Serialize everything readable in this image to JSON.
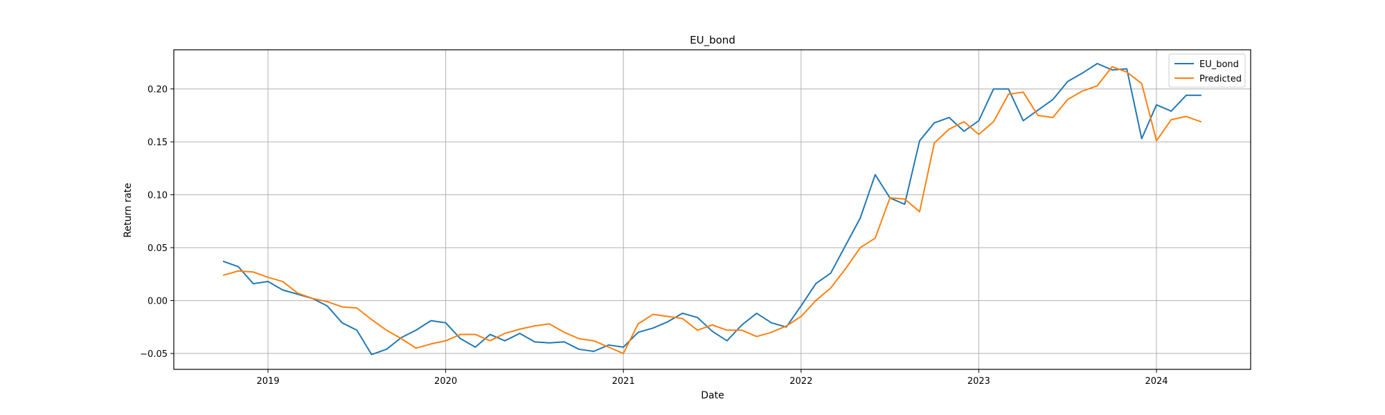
{
  "chart_data": {
    "type": "line",
    "title": "EU_bond",
    "xlabel": "Date",
    "ylabel": "Return rate",
    "grid": true,
    "legend_position": "top-right",
    "xlim": [
      2018.47,
      2024.53
    ],
    "ylim": [
      -0.065,
      0.237
    ],
    "x_ticks": [
      {
        "label": "2019",
        "value": 2019
      },
      {
        "label": "2020",
        "value": 2020
      },
      {
        "label": "2021",
        "value": 2021
      },
      {
        "label": "2022",
        "value": 2022
      },
      {
        "label": "2023",
        "value": 2023
      },
      {
        "label": "2024",
        "value": 2024
      }
    ],
    "y_ticks": [
      {
        "label": "−0.05",
        "value": -0.05
      },
      {
        "label": "0.00",
        "value": 0.0
      },
      {
        "label": "0.05",
        "value": 0.05
      },
      {
        "label": "0.10",
        "value": 0.1
      },
      {
        "label": "0.15",
        "value": 0.15
      },
      {
        "label": "0.20",
        "value": 0.2
      }
    ],
    "x": [
      2018.75,
      2018.833,
      2018.917,
      2019.0,
      2019.083,
      2019.167,
      2019.25,
      2019.333,
      2019.417,
      2019.5,
      2019.583,
      2019.667,
      2019.75,
      2019.833,
      2019.917,
      2020.0,
      2020.083,
      2020.167,
      2020.25,
      2020.333,
      2020.417,
      2020.5,
      2020.583,
      2020.667,
      2020.75,
      2020.833,
      2020.917,
      2021.0,
      2021.083,
      2021.167,
      2021.25,
      2021.333,
      2021.417,
      2021.5,
      2021.583,
      2021.667,
      2021.75,
      2021.833,
      2021.917,
      2022.0,
      2022.083,
      2022.167,
      2022.25,
      2022.333,
      2022.417,
      2022.5,
      2022.583,
      2022.667,
      2022.75,
      2022.833,
      2022.917,
      2023.0,
      2023.083,
      2023.167,
      2023.25,
      2023.333,
      2023.417,
      2023.5,
      2023.583,
      2023.667,
      2023.75,
      2023.833,
      2023.917,
      2024.0,
      2024.083,
      2024.167,
      2024.25
    ],
    "series": [
      {
        "name": "EU_bond",
        "color": "#1f77b4",
        "values": [
          0.037,
          0.032,
          0.016,
          0.018,
          0.01,
          0.006,
          0.002,
          -0.005,
          -0.021,
          -0.028,
          -0.051,
          -0.046,
          -0.035,
          -0.028,
          -0.019,
          -0.021,
          -0.036,
          -0.044,
          -0.032,
          -0.038,
          -0.031,
          -0.039,
          -0.04,
          -0.039,
          -0.046,
          -0.048,
          -0.042,
          -0.044,
          -0.03,
          -0.026,
          -0.02,
          -0.012,
          -0.016,
          -0.029,
          -0.038,
          -0.023,
          -0.012,
          -0.021,
          -0.025,
          -0.005,
          0.016,
          0.026,
          0.052,
          0.078,
          0.119,
          0.097,
          0.091,
          0.151,
          0.168,
          0.173,
          0.16,
          0.17,
          0.2,
          0.2,
          0.17,
          0.18,
          0.19,
          0.207,
          0.215,
          0.224,
          0.218,
          0.219,
          0.153,
          0.185,
          0.179,
          0.194,
          0.194
        ]
      },
      {
        "name": "Predicted",
        "color": "#ff7f0e",
        "values": [
          0.024,
          0.028,
          0.027,
          0.022,
          0.018,
          0.007,
          0.002,
          -0.001,
          -0.006,
          -0.007,
          -0.018,
          -0.028,
          -0.036,
          -0.045,
          -0.041,
          -0.038,
          -0.032,
          -0.032,
          -0.038,
          -0.031,
          -0.027,
          -0.024,
          -0.022,
          -0.03,
          -0.036,
          -0.038,
          -0.044,
          -0.05,
          -0.022,
          -0.013,
          -0.015,
          -0.017,
          -0.028,
          -0.023,
          -0.028,
          -0.028,
          -0.034,
          -0.03,
          -0.024,
          -0.015,
          0.0,
          0.012,
          0.03,
          0.05,
          0.059,
          0.097,
          0.096,
          0.084,
          0.149,
          0.162,
          0.169,
          0.157,
          0.169,
          0.195,
          0.197,
          0.175,
          0.173,
          0.19,
          0.198,
          0.203,
          0.221,
          0.216,
          0.205,
          0.151,
          0.171,
          0.174,
          0.169
        ]
      }
    ]
  }
}
